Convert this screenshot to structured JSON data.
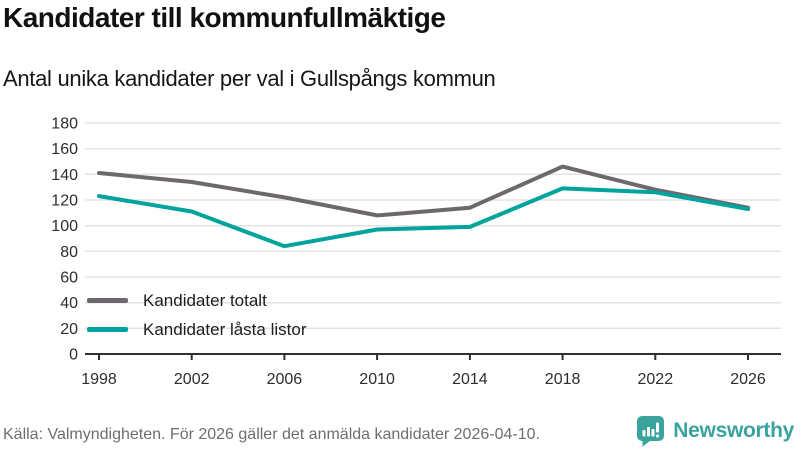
{
  "header": {
    "title": "Kandidater till kommunfullmäktige",
    "subtitle": "Antal unika kandidater per val i Gullspångs kommun"
  },
  "chart_data": {
    "type": "line",
    "title": "Kandidater till kommunfullmäktige",
    "subtitle": "Antal unika kandidater per val i Gullspångs kommun",
    "x": [
      1998,
      2002,
      2006,
      2010,
      2014,
      2018,
      2022,
      2026
    ],
    "series": [
      {
        "name": "Kandidater totalt",
        "color": "#6d686d",
        "values": [
          141,
          134,
          122,
          108,
          114,
          146,
          128,
          114
        ]
      },
      {
        "name": "Kandidater låsta listor",
        "color": "#00a49c",
        "values": [
          123,
          111,
          84,
          97,
          99,
          129,
          126,
          113
        ]
      }
    ],
    "ylim": [
      0,
      180
    ],
    "ytick_step": 20,
    "xlabel": "",
    "ylabel": "",
    "grid": true,
    "legend_position": "inside-bottom-left"
  },
  "footer": {
    "source": "Källa: Valmyndigheten. För 2026 gäller det anmälda kandidater 2026-04-10.",
    "brand_name": "Newsworthy"
  },
  "colors": {
    "series_total": "#6d686d",
    "series_locked_lists": "#00a49c",
    "brand_teal": "#3aa39e",
    "gridline": "#e3e3e3",
    "axis": "#2f2f2f",
    "footer_text": "#6e6e6e"
  },
  "icons": {
    "brand_logo": "newsworthy-speech-bubble-bar-chart-icon"
  }
}
